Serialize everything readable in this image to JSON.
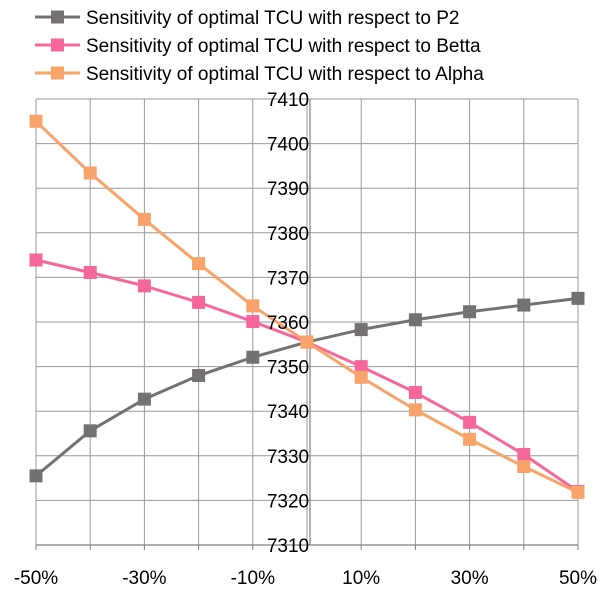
{
  "chart_data": {
    "type": "line",
    "title": "",
    "xlabel": "",
    "ylabel": "",
    "x": [
      "-50%",
      "-40%",
      "-30%",
      "-20%",
      "-10%",
      "0%",
      "10%",
      "20%",
      "30%",
      "40%",
      "50%"
    ],
    "x_tick_labels": [
      "-50%",
      "-30%",
      "-10%",
      "10%",
      "30%",
      "50%"
    ],
    "y_tick_labels": [
      "7310",
      "7320",
      "7330",
      "7340",
      "7350",
      "7360",
      "7370",
      "7380",
      "7390",
      "7400",
      "7410"
    ],
    "ylim": [
      7310,
      7410
    ],
    "grid": true,
    "legend_position": "top",
    "series": [
      {
        "name": "Sensitivity of optimal TCU with respect to P2",
        "color": "#767171",
        "marker": "square",
        "values": [
          7325.5,
          7335.6,
          7342.7,
          7348,
          7352.1,
          7355.5,
          7358.3,
          7360.5,
          7362.3,
          7363.8,
          7365.3
        ]
      },
      {
        "name": "Sensitivity of optimal TCU with respect to Betta",
        "color": "#f5679b",
        "marker": "square",
        "values": [
          7373.9,
          7371.1,
          7368.1,
          7364.4,
          7360.1,
          7355.5,
          7350,
          7344.2,
          7337.5,
          7330.3,
          7322
        ]
      },
      {
        "name": "Sensitivity of optimal TCU with respect to Alpha",
        "color": "#f7a36a",
        "marker": "square",
        "values": [
          7405,
          7393.4,
          7383,
          7373.1,
          7363.6,
          7355.5,
          7347.6,
          7340.3,
          7333.7,
          7327.6,
          7321.8
        ]
      }
    ]
  }
}
